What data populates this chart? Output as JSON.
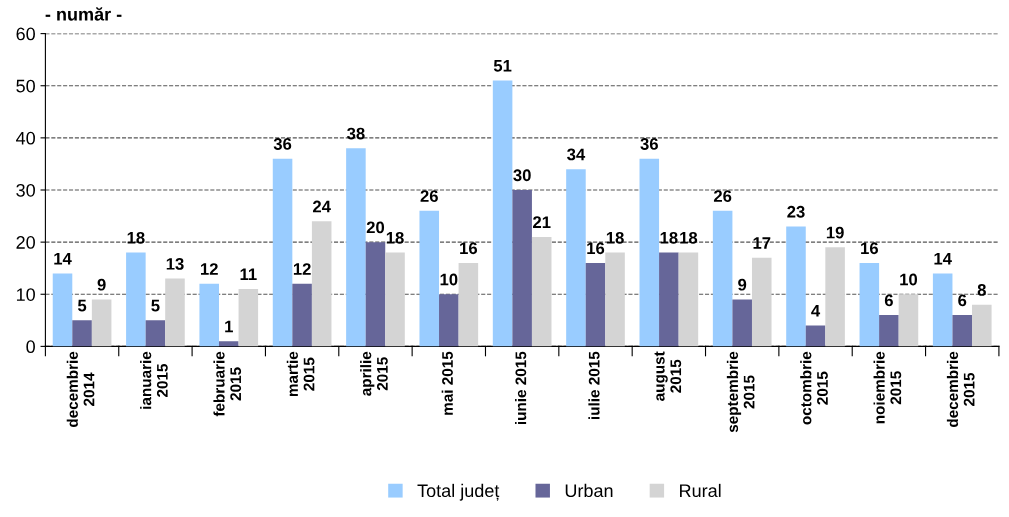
{
  "chart_data": {
    "type": "bar",
    "ylabel": "- număr -",
    "categories": [
      "decembrie\n2014",
      "ianuarie\n2015",
      "februarie\n2015",
      "martie\n2015",
      "aprilie\n2015",
      "mai 2015",
      "iunie 2015",
      "iulie 2015",
      "august\n2015",
      "septembrie\n2015",
      "octombrie\n2015",
      "noiembrie\n2015",
      "decembrie\n2015"
    ],
    "series": [
      {
        "name": "Total județ",
        "color": "#99ccff",
        "values": [
          14,
          18,
          12,
          36,
          38,
          26,
          51,
          34,
          36,
          26,
          23,
          16,
          14
        ]
      },
      {
        "name": "Urban",
        "color": "#666699",
        "values": [
          5,
          5,
          1,
          12,
          20,
          10,
          30,
          16,
          18,
          9,
          4,
          6,
          6
        ]
      },
      {
        "name": "Rural",
        "color": "#d4d4d4",
        "values": [
          9,
          13,
          11,
          24,
          18,
          16,
          21,
          18,
          18,
          17,
          19,
          10,
          8
        ]
      }
    ],
    "ylim": [
      0,
      60
    ],
    "yticks": [
      0,
      10,
      20,
      30,
      40,
      50,
      60
    ],
    "grid": "y",
    "legend": "bottom",
    "data_labels": true
  }
}
